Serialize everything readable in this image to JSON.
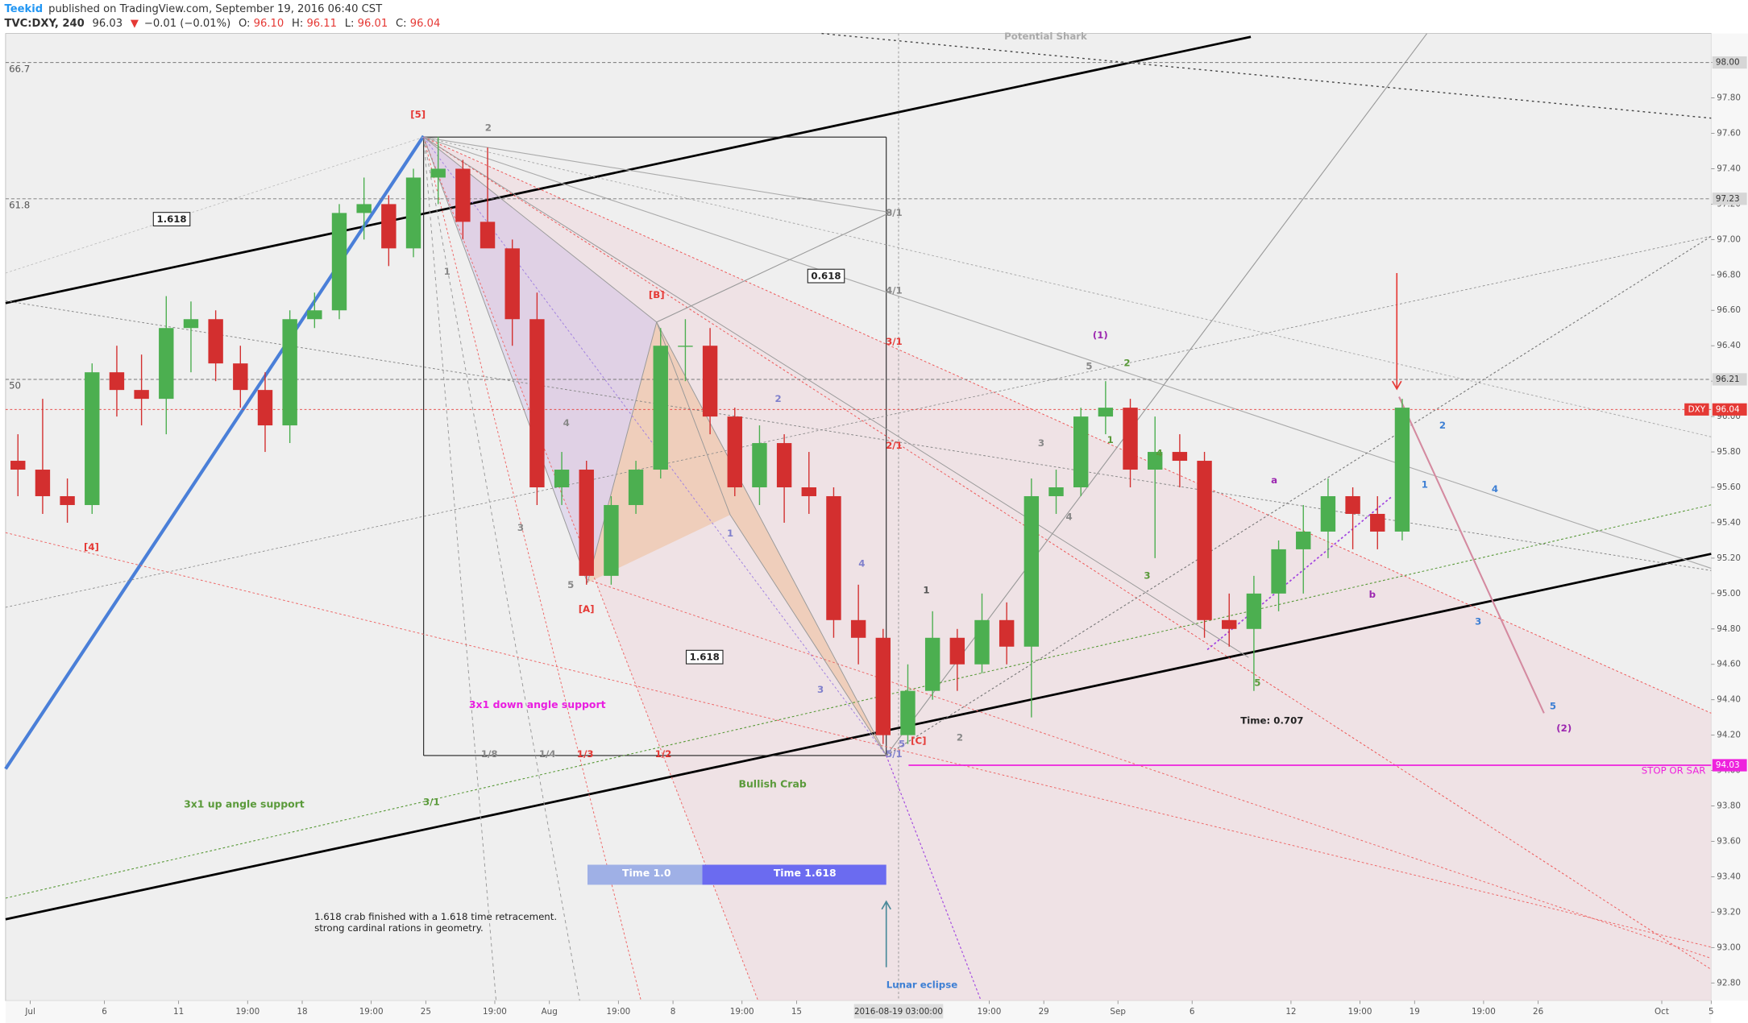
{
  "header": {
    "author": "Teekid",
    "published": "published on TradingView.com, September 19, 2016 06:40 CST",
    "symbol": "TVC:DXY, 240",
    "last": "96.03",
    "change_arrow": "▼",
    "change": "−0.01 (−0.01%)",
    "open_label": "O:",
    "open": "96.10",
    "high_label": "H:",
    "high": "96.11",
    "low_label": "L:",
    "low": "96.01",
    "close_label": "C:",
    "close": "96.04"
  },
  "chart_data": {
    "type": "candlestick",
    "up_color": "#4caf50",
    "down_color": "#d32f2f",
    "x": [
      "2016-06-30",
      "2016-07-01",
      "2016-07-04",
      "2016-07-05",
      "2016-07-06",
      "2016-07-07",
      "2016-07-08",
      "2016-07-11",
      "2016-07-12",
      "2016-07-13",
      "2016-07-14",
      "2016-07-15",
      "2016-07-18",
      "2016-07-19",
      "2016-07-20",
      "2016-07-21",
      "2016-07-22",
      "2016-07-25",
      "2016-07-26",
      "2016-07-27",
      "2016-07-28",
      "2016-07-29",
      "2016-08-01",
      "2016-08-02",
      "2016-08-03",
      "2016-08-04",
      "2016-08-05",
      "2016-08-08",
      "2016-08-09",
      "2016-08-10",
      "2016-08-11",
      "2016-08-12",
      "2016-08-15",
      "2016-08-16",
      "2016-08-17",
      "2016-08-18",
      "2016-08-19",
      "2016-08-22",
      "2016-08-23",
      "2016-08-24",
      "2016-08-25",
      "2016-08-26",
      "2016-08-29",
      "2016-08-30",
      "2016-08-31",
      "2016-09-01",
      "2016-09-02",
      "2016-09-05",
      "2016-09-06",
      "2016-09-07",
      "2016-09-08",
      "2016-09-09",
      "2016-09-12",
      "2016-09-13",
      "2016-09-14",
      "2016-09-15",
      "2016-09-16"
    ],
    "open": [
      95.75,
      95.7,
      95.55,
      95.5,
      96.25,
      96.15,
      96.1,
      96.5,
      96.55,
      96.3,
      96.15,
      95.95,
      96.55,
      96.6,
      97.15,
      97.2,
      96.95,
      97.35,
      97.4,
      97.1,
      96.95,
      96.55,
      95.6,
      95.7,
      95.1,
      95.5,
      95.7,
      96.4,
      96.4,
      96.0,
      95.6,
      95.85,
      95.6,
      95.55,
      94.85,
      94.75,
      94.2,
      94.45,
      94.75,
      94.6,
      94.85,
      94.7,
      95.55,
      95.6,
      96.0,
      96.05,
      95.7,
      95.8,
      95.75,
      94.85,
      94.8,
      95.0,
      95.25,
      95.35,
      95.55,
      95.45,
      95.35
    ],
    "high": [
      95.9,
      96.1,
      95.65,
      96.3,
      96.4,
      96.35,
      96.68,
      96.65,
      96.6,
      96.4,
      96.25,
      96.6,
      96.7,
      97.2,
      97.35,
      97.25,
      97.4,
      97.58,
      97.45,
      97.52,
      97.0,
      96.7,
      95.8,
      95.75,
      95.55,
      95.75,
      96.5,
      96.55,
      96.5,
      96.05,
      95.95,
      95.9,
      95.8,
      95.6,
      95.05,
      94.8,
      94.6,
      94.9,
      94.8,
      95.0,
      94.95,
      95.65,
      95.7,
      96.05,
      96.2,
      96.1,
      96.0,
      95.9,
      95.8,
      95.0,
      95.1,
      95.3,
      95.5,
      95.65,
      95.6,
      95.55,
      96.1
    ],
    "low": [
      95.55,
      95.45,
      95.4,
      95.45,
      96.0,
      95.95,
      95.9,
      96.25,
      96.2,
      96.05,
      95.8,
      95.85,
      96.5,
      96.55,
      97.0,
      96.85,
      96.9,
      97.2,
      97.0,
      97.0,
      96.4,
      95.5,
      95.5,
      95.05,
      95.05,
      95.45,
      95.65,
      96.2,
      95.9,
      95.55,
      95.5,
      95.4,
      95.45,
      94.75,
      94.6,
      94.15,
      94.15,
      94.4,
      94.45,
      94.55,
      94.6,
      94.3,
      95.45,
      95.55,
      95.9,
      95.6,
      95.2,
      95.6,
      94.75,
      94.7,
      94.45,
      94.9,
      95.0,
      95.2,
      95.25,
      95.25,
      95.3
    ],
    "close": [
      95.7,
      95.55,
      95.5,
      96.25,
      96.15,
      96.1,
      96.5,
      96.55,
      96.3,
      96.15,
      95.95,
      96.55,
      96.6,
      97.15,
      97.2,
      96.95,
      97.35,
      97.4,
      97.1,
      96.95,
      96.55,
      95.6,
      95.7,
      95.1,
      95.5,
      95.7,
      96.4,
      96.4,
      96.0,
      95.6,
      95.85,
      95.6,
      95.55,
      94.85,
      94.75,
      94.2,
      94.45,
      94.75,
      94.6,
      94.85,
      94.7,
      95.55,
      95.6,
      96.0,
      96.05,
      95.7,
      95.8,
      95.75,
      94.85,
      94.8,
      95.0,
      95.25,
      95.35,
      95.55,
      95.45,
      95.35,
      96.05
    ],
    "xlim": [
      "2016-06-30",
      "2016-10-05"
    ],
    "xticks": [
      {
        "value": "2016-07-01",
        "label": "Jul"
      },
      {
        "value": "2016-07-06",
        "label": "6"
      },
      {
        "value": "2016-07-11",
        "label": "11"
      },
      {
        "value": "2016-07-13 19:00",
        "label": "19:00"
      },
      {
        "value": "2016-07-18",
        "label": "18"
      },
      {
        "value": "2016-07-20 19:00",
        "label": "19:00"
      },
      {
        "value": "2016-07-25",
        "label": "25"
      },
      {
        "value": "2016-07-27 19:00",
        "label": "19:00"
      },
      {
        "value": "2016-08-01",
        "label": "Aug"
      },
      {
        "value": "2016-08-03 19:00",
        "label": "19:00"
      },
      {
        "value": "2016-08-08",
        "label": "8"
      },
      {
        "value": "2016-08-10 19:00",
        "label": "19:00"
      },
      {
        "value": "2016-08-15",
        "label": "15"
      },
      {
        "value": "2016-08-24 19:00",
        "label": "19:00"
      },
      {
        "value": "2016-08-29",
        "label": "29"
      },
      {
        "value": "2016-09-01",
        "label": "Sep"
      },
      {
        "value": "2016-09-06",
        "label": "6"
      },
      {
        "value": "2016-09-12",
        "label": "12"
      },
      {
        "value": "2016-09-14 19:00",
        "label": "19:00"
      },
      {
        "value": "2016-09-19",
        "label": "19"
      },
      {
        "value": "2016-09-21 19:00",
        "label": "19:00"
      },
      {
        "value": "2016-09-26",
        "label": "26"
      },
      {
        "value": "2016-10-03",
        "label": "Oct"
      },
      {
        "value": "2016-10-05",
        "label": "5"
      }
    ],
    "ylim": [
      92.7,
      98.164
    ],
    "yticks": [
      {
        "value": 92.8,
        "label": "92.80"
      },
      {
        "value": 93.0,
        "label": "93.00"
      },
      {
        "value": 93.2,
        "label": "93.20"
      },
      {
        "value": 93.4,
        "label": "93.40"
      },
      {
        "value": 93.6,
        "label": "93.60"
      },
      {
        "value": 93.8,
        "label": "93.80"
      },
      {
        "value": 94.0,
        "label": "94.00"
      },
      {
        "value": 94.2,
        "label": "94.20"
      },
      {
        "value": 94.4,
        "label": "94.40"
      },
      {
        "value": 94.6,
        "label": "94.60"
      },
      {
        "value": 94.8,
        "label": "94.80"
      },
      {
        "value": 95.0,
        "label": "95.00"
      },
      {
        "value": 95.2,
        "label": "95.20"
      },
      {
        "value": 95.4,
        "label": "95.40"
      },
      {
        "value": 95.6,
        "label": "95.60"
      },
      {
        "value": 95.8,
        "label": "95.80"
      },
      {
        "value": 96.0,
        "label": "96.00"
      },
      {
        "value": 96.2,
        "label": "96.20"
      },
      {
        "value": 96.4,
        "label": "96.40"
      },
      {
        "value": 96.6,
        "label": "96.60"
      },
      {
        "value": 96.8,
        "label": "96.80"
      },
      {
        "value": 97.0,
        "label": "97.00"
      },
      {
        "value": 97.2,
        "label": "97.20"
      },
      {
        "value": 97.4,
        "label": "97.40"
      },
      {
        "value": 97.6,
        "label": "97.60"
      },
      {
        "value": 97.8,
        "label": "97.80"
      },
      {
        "value": 98.0,
        "label": "98.00"
      }
    ],
    "grid": false,
    "levels": [
      {
        "value": 98.0,
        "label": "98.00",
        "fib": 66.7
      },
      {
        "value": 97.23,
        "label": "97.23",
        "fib": 61.8
      },
      {
        "value": 96.21,
        "label": "96.21",
        "fib": 50
      }
    ],
    "last": {
      "name": "DXY",
      "value": 96.04,
      "label": "96.04",
      "color": "#e53935"
    },
    "stop": {
      "text": "STOP OR SAR",
      "value": 94.03,
      "label": "94.03",
      "color": "#ee22dd"
    },
    "crosshair": {
      "value": "2016-08-19 03:00",
      "label": "2016-08-19 03:00:00"
    },
    "annotations": [
      "Potential Shark",
      "[5]",
      "2",
      "1.618",
      "0.618",
      "[B]",
      "8/1",
      "4/1",
      "3/1",
      "2/1",
      "(1)",
      "5",
      "2",
      "1",
      "4",
      "3",
      "4",
      "3",
      "[4]",
      "1",
      "4",
      "2",
      "1",
      "3",
      "5",
      "[A]",
      "4",
      "3",
      "1.618",
      "3x1 down angle support",
      "1",
      "2",
      "5",
      "[C]",
      "5/1",
      "1/8",
      "1/4",
      "1/3",
      "1/2",
      "3/1",
      "3x1 up angle support",
      "Bullish Crab",
      "Time 1.0",
      "Time 1.618",
      "1.618 crab finished with a 1.618 time retracement.",
      "strong cardinal rations in geometry.",
      "Lunar eclipse",
      "a",
      "b",
      "5",
      "Time: 0.707",
      "2",
      "1",
      "4",
      "3",
      "5",
      "(2)"
    ]
  }
}
